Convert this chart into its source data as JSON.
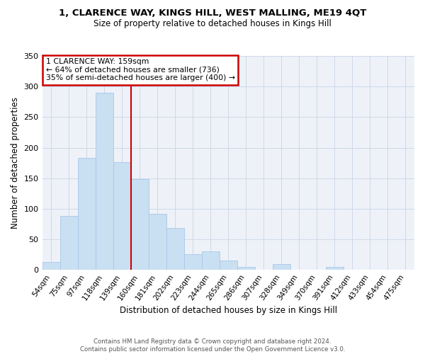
{
  "title_line1": "1, CLARENCE WAY, KINGS HILL, WEST MALLING, ME19 4QT",
  "title_line2": "Size of property relative to detached houses in Kings Hill",
  "xlabel": "Distribution of detached houses by size in Kings Hill",
  "ylabel": "Number of detached properties",
  "bar_labels": [
    "54sqm",
    "75sqm",
    "97sqm",
    "118sqm",
    "139sqm",
    "160sqm",
    "181sqm",
    "202sqm",
    "223sqm",
    "244sqm",
    "265sqm",
    "286sqm",
    "307sqm",
    "328sqm",
    "349sqm",
    "370sqm",
    "391sqm",
    "412sqm",
    "433sqm",
    "454sqm",
    "475sqm"
  ],
  "bar_values": [
    13,
    88,
    183,
    290,
    176,
    149,
    92,
    69,
    26,
    30,
    15,
    5,
    0,
    10,
    0,
    0,
    5,
    0,
    0,
    0,
    0
  ],
  "bar_color": "#c9dff2",
  "bar_edge_color": "#a8c8e8",
  "reference_line_color": "#cc0000",
  "annotation_text": "1 CLARENCE WAY: 159sqm\n← 64% of detached houses are smaller (736)\n35% of semi-detached houses are larger (400) →",
  "annotation_box_color": "#ffffff",
  "annotation_box_edge_color": "#cc0000",
  "ylim": [
    0,
    350
  ],
  "yticks": [
    0,
    50,
    100,
    150,
    200,
    250,
    300,
    350
  ],
  "footer_text": "Contains HM Land Registry data © Crown copyright and database right 2024.\nContains public sector information licensed under the Open Government Licence v3.0.",
  "grid_color": "#cdd8e8",
  "background_color": "#eef2f8",
  "title1_fontsize": 9.5,
  "title2_fontsize": 8.5
}
